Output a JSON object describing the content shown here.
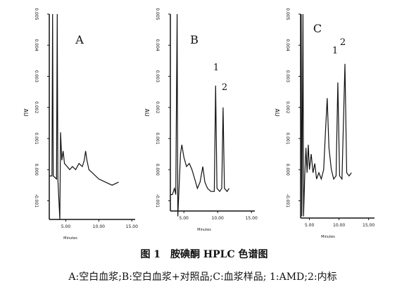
{
  "chart_data": [
    {
      "type": "line",
      "panel": "A",
      "ylabel": "AU",
      "xlabel": "Minutes",
      "color": "#111111",
      "xlim": [
        2.5,
        15.5
      ],
      "ylim": [
        -0.0016,
        0.005
      ],
      "xticks": [
        {
          "value": 5,
          "label": "5.00"
        },
        {
          "value": 10,
          "label": "10.00"
        },
        {
          "value": 15,
          "label": "15.00"
        }
      ],
      "yticks": [
        -0.001,
        {
          "value": 0,
          "label": "0.000"
        },
        0.001,
        0.002,
        0.003,
        0.004,
        0.005
      ],
      "annotations": [],
      "x": [
        2.5,
        2.9,
        3.0,
        3.1,
        3.6,
        3.7,
        3.8,
        4.1,
        4.2,
        4.4,
        4.6,
        4.8,
        5.2,
        5.6,
        6.0,
        6.5,
        7.0,
        7.5,
        7.8,
        8.0,
        8.2,
        8.5,
        9.0,
        10,
        11,
        12,
        13
      ],
      "values": [
        -0.0002,
        -0.0002,
        0.005,
        -0.0002,
        -0.0003,
        0.005,
        -0.0003,
        -0.0016,
        0.0012,
        0.0003,
        0.0006,
        0.0002,
        0.0001,
        0.0,
        0.0001,
        0.0,
        0.0002,
        0.0001,
        0.0003,
        0.0006,
        0.0003,
        0.0,
        -0.0001,
        -0.0003,
        -0.0004,
        -0.0005,
        -0.0004
      ]
    },
    {
      "type": "line",
      "panel": "B",
      "ylabel": "AU",
      "xlabel": "Minutes",
      "color": "#111111",
      "xlim": [
        3,
        15.5
      ],
      "ylim": [
        -0.0016,
        0.005
      ],
      "xticks": [
        {
          "value": 5,
          "label": "5.00"
        },
        {
          "value": 10,
          "label": "10.00"
        },
        {
          "value": 15,
          "label": "15.00"
        }
      ],
      "yticks": [
        -0.001,
        {
          "value": 0,
          "label": "0.000"
        },
        0.001,
        0.002,
        0.003,
        0.004,
        0.005
      ],
      "annotations": [
        "1",
        "2"
      ],
      "x": [
        3.0,
        3.3,
        3.6,
        3.8,
        4.0,
        4.1,
        4.3,
        4.5,
        4.7,
        5.0,
        5.4,
        5.8,
        6.2,
        6.6,
        7.0,
        7.4,
        7.8,
        8.1,
        8.5,
        9.0,
        9.5,
        9.7,
        9.9,
        10.3,
        10.6,
        10.8,
        11.0,
        11.4,
        11.7
      ],
      "values": [
        -0.0008,
        -0.0008,
        -0.0006,
        -0.0008,
        0.005,
        -0.0015,
        -0.0005,
        0.0005,
        0.0008,
        0.0004,
        0.0001,
        0.0002,
        0.0,
        -0.0003,
        -0.0006,
        -0.0004,
        0.0001,
        -0.0004,
        -0.0006,
        -0.0007,
        -0.0007,
        0.0027,
        -0.0006,
        -0.0007,
        -0.0006,
        0.002,
        -0.0006,
        -0.0007,
        -0.0006
      ]
    },
    {
      "type": "line",
      "panel": "C",
      "ylabel": "AU",
      "xlabel": "Minutes",
      "color": "#111111",
      "xlim": [
        3.5,
        16
      ],
      "ylim": [
        -0.0016,
        0.005
      ],
      "xticks": [
        {
          "value": 5,
          "label": "5.00"
        },
        {
          "value": 10,
          "label": "10.00"
        },
        {
          "value": 15,
          "label": "15.00"
        }
      ],
      "yticks": [
        -0.001,
        {
          "value": 0,
          "label": "0.000"
        },
        0.001,
        0.002,
        0.003,
        0.004,
        0.005
      ],
      "annotations": [
        "1",
        "2"
      ],
      "x": [
        3.6,
        3.7,
        3.9,
        4.0,
        4.2,
        4.4,
        4.6,
        4.8,
        5.0,
        5.3,
        5.6,
        5.9,
        6.2,
        6.6,
        7.0,
        7.4,
        7.7,
        8.0,
        8.3,
        8.7,
        9.1,
        9.5,
        9.8,
        10.1,
        10.5,
        11.0,
        11.3,
        11.7,
        12.1
      ],
      "values": [
        0.005,
        -0.0015,
        0.005,
        -0.0015,
        -0.0002,
        0.0007,
        -0.0001,
        0.0008,
        0.0,
        0.0005,
        -0.0001,
        0.0002,
        -0.0003,
        -0.0001,
        -0.0003,
        0.0,
        0.0012,
        0.0023,
        0.0007,
        0.0,
        -0.0003,
        -0.0002,
        0.0028,
        -0.0002,
        -0.0003,
        0.0034,
        -0.0001,
        -0.0002,
        -0.0001
      ]
    }
  ],
  "caption": "图 1　胺碘酮 HPLC 色谱图",
  "note": "A:空白血浆;B:空白血浆+对照品;C:血浆样品; 1:AMD;2:内标"
}
